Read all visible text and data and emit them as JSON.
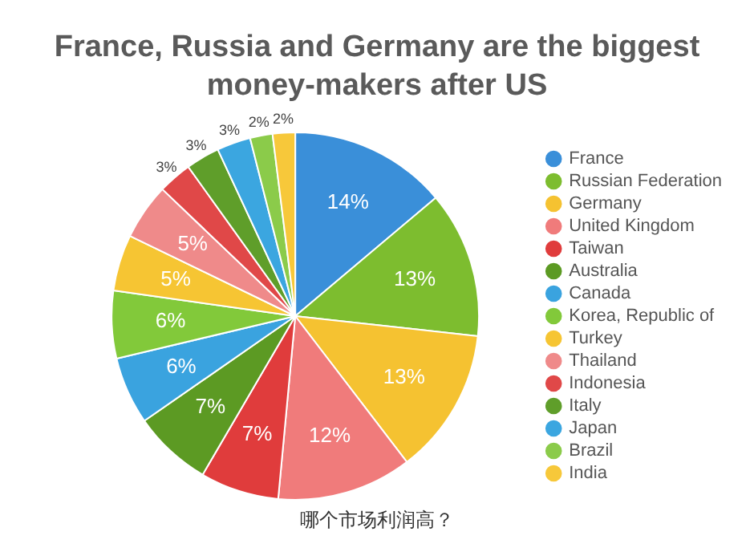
{
  "chart_data": {
    "type": "pie",
    "title": "France, Russia and Germany are the biggest money-makers after US",
    "categories": [
      "France",
      "Russian Federation",
      "Germany",
      "United Kingdom",
      "Taiwan",
      "Australia",
      "Canada",
      "Korea, Republic of",
      "Turkey",
      "Thailand",
      "Indonesia",
      "Italy",
      "Japan",
      "Brazil",
      "India"
    ],
    "values": [
      14,
      13,
      13,
      12,
      7,
      7,
      6,
      6,
      5,
      5,
      3,
      3,
      3,
      2,
      2
    ],
    "value_labels": [
      "14%",
      "13%",
      "13%",
      "12%",
      "7%",
      "7%",
      "6%",
      "6%",
      "5%",
      "5%",
      "3%",
      "3%",
      "3%",
      "2%",
      "2%"
    ],
    "colors": [
      "#3a8fd9",
      "#7dbd2f",
      "#f5c231",
      "#f07b7b",
      "#e03c3c",
      "#5c9a23",
      "#3aa3df",
      "#82c93a",
      "#f6c533",
      "#ef8a8a",
      "#e04848",
      "#5f9e2a",
      "#3ba6e0",
      "#8bcb4a",
      "#f7c83a"
    ],
    "legend": "right",
    "annotations": [
      "哪个市场利润高？"
    ]
  }
}
